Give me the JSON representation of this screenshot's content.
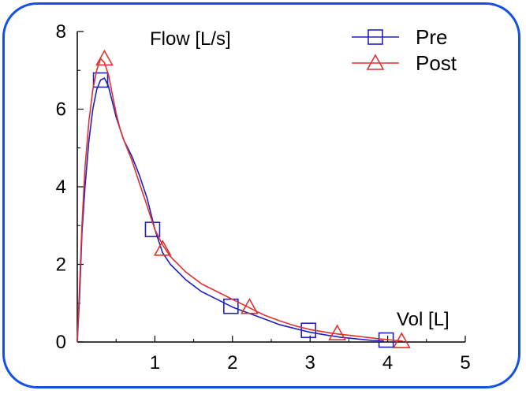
{
  "chart_data": {
    "type": "line",
    "title": "",
    "ylabel": "Flow [L/s]",
    "xlabel": "Vol [L]",
    "xlim": [
      0,
      5
    ],
    "ylim": [
      0,
      8
    ],
    "xticks": [
      "1",
      "2",
      "3",
      "4",
      "5"
    ],
    "yticks": [
      "0",
      "2",
      "4",
      "6",
      "8"
    ],
    "grid": false,
    "legend": "top-right",
    "series": [
      {
        "name": "Pre",
        "color": "#2020c0",
        "marker": "square",
        "x": [
          0,
          0.03,
          0.06,
          0.1,
          0.15,
          0.2,
          0.25,
          0.3,
          0.35,
          0.4,
          0.45,
          0.5,
          0.55,
          0.6,
          0.7,
          0.8,
          0.9,
          1.0,
          1.1,
          1.2,
          1.4,
          1.6,
          1.8,
          2.0,
          2.2,
          2.4,
          2.6,
          2.8,
          3.0,
          3.2,
          3.4,
          3.6,
          3.8,
          3.95
        ],
        "y": [
          0,
          1.2,
          2.8,
          4.0,
          5.2,
          6.0,
          6.5,
          6.75,
          6.8,
          6.6,
          6.2,
          5.8,
          5.5,
          5.2,
          4.8,
          4.3,
          3.7,
          2.9,
          2.3,
          2.0,
          1.6,
          1.3,
          1.1,
          0.9,
          0.75,
          0.6,
          0.45,
          0.35,
          0.25,
          0.18,
          0.12,
          0.08,
          0.04,
          0.03
        ],
        "marker_x": [
          0.3,
          0.97,
          1.98,
          2.98,
          3.98
        ],
        "marker_y": [
          6.75,
          2.9,
          0.92,
          0.3,
          0.05
        ]
      },
      {
        "name": "Post",
        "color": "#e03030",
        "marker": "triangle",
        "x": [
          0,
          0.03,
          0.06,
          0.1,
          0.15,
          0.2,
          0.25,
          0.3,
          0.35,
          0.4,
          0.45,
          0.5,
          0.55,
          0.6,
          0.7,
          0.8,
          0.9,
          1.0,
          1.1,
          1.2,
          1.4,
          1.6,
          1.8,
          2.0,
          2.2,
          2.4,
          2.6,
          2.8,
          3.0,
          3.3,
          3.6,
          3.9,
          4.1,
          4.2
        ],
        "y": [
          0,
          1.5,
          3.0,
          4.5,
          5.7,
          6.5,
          7.0,
          7.3,
          7.2,
          6.9,
          6.4,
          5.9,
          5.5,
          5.2,
          4.7,
          4.1,
          3.5,
          2.9,
          2.5,
          2.2,
          1.8,
          1.5,
          1.3,
          1.1,
          0.9,
          0.7,
          0.55,
          0.42,
          0.32,
          0.22,
          0.15,
          0.08,
          0.04,
          0.02
        ],
        "marker_x": [
          0.35,
          1.1,
          2.22,
          3.35,
          4.18
        ],
        "marker_y": [
          7.3,
          2.4,
          0.9,
          0.22,
          0.02
        ]
      }
    ]
  }
}
